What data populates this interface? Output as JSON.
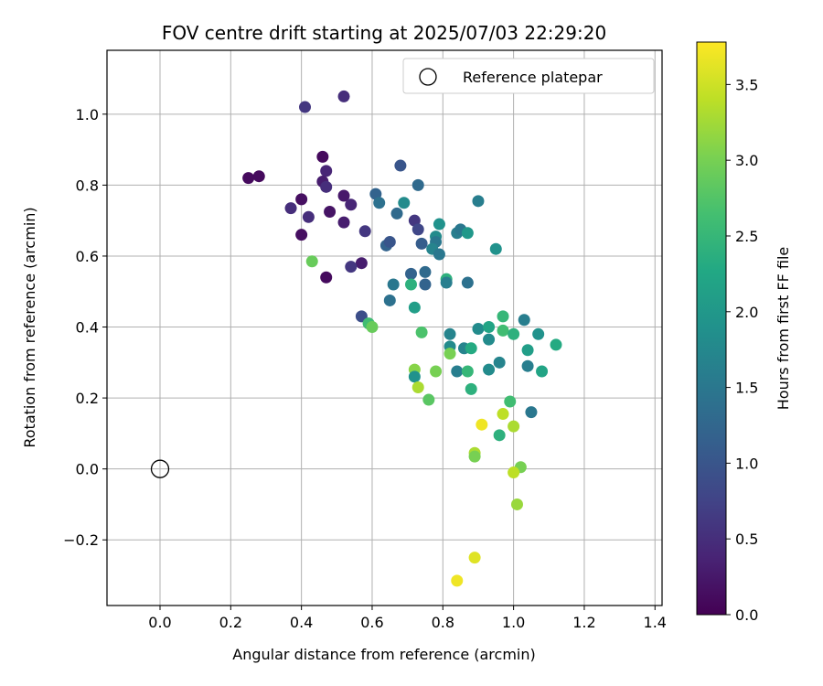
{
  "chart_data": {
    "type": "scatter",
    "title": "FOV centre drift starting at 2025/07/03 22:29:20",
    "xlabel": "Angular distance from reference (arcmin)",
    "ylabel": "Rotation from reference (arcmin)",
    "xlim": [
      -0.15,
      1.42
    ],
    "ylim": [
      -0.385,
      1.18
    ],
    "xticks": [
      0.0,
      0.2,
      0.4,
      0.6,
      0.8,
      1.0,
      1.2,
      1.4
    ],
    "xtick_labels": [
      "0.0",
      "0.2",
      "0.4",
      "0.6",
      "0.8",
      "1.0",
      "1.2",
      "1.4"
    ],
    "yticks": [
      -0.2,
      0.0,
      0.2,
      0.4,
      0.6,
      0.8,
      1.0
    ],
    "ytick_labels": [
      "−0.2",
      "0.0",
      "0.2",
      "0.4",
      "0.6",
      "0.8",
      "1.0"
    ],
    "grid": true,
    "legend": {
      "position": "top-right",
      "entries": [
        "Reference platepar"
      ]
    },
    "reference_point": {
      "x": 0.0,
      "y": 0.0,
      "label": "Reference platepar"
    },
    "colorbar": {
      "label": "Hours from first FF file",
      "colormap": "viridis",
      "range": [
        0.0,
        3.78
      ],
      "ticks": [
        0.0,
        0.5,
        1.0,
        1.5,
        2.0,
        2.5,
        3.0,
        3.5
      ],
      "tick_labels": [
        "0.0",
        "0.5",
        "1.0",
        "1.5",
        "2.0",
        "2.5",
        "3.0",
        "3.5"
      ]
    },
    "points": [
      {
        "x": 0.25,
        "y": 0.82,
        "c": 0.1
      },
      {
        "x": 0.28,
        "y": 0.825,
        "c": 0.1
      },
      {
        "x": 0.41,
        "y": 1.02,
        "c": 0.6
      },
      {
        "x": 0.52,
        "y": 1.05,
        "c": 0.5
      },
      {
        "x": 0.46,
        "y": 0.88,
        "c": 0.1
      },
      {
        "x": 0.47,
        "y": 0.84,
        "c": 0.4
      },
      {
        "x": 0.46,
        "y": 0.81,
        "c": 0.3
      },
      {
        "x": 0.47,
        "y": 0.795,
        "c": 0.5
      },
      {
        "x": 0.4,
        "y": 0.76,
        "c": 0.15
      },
      {
        "x": 0.37,
        "y": 0.735,
        "c": 0.5
      },
      {
        "x": 0.42,
        "y": 0.71,
        "c": 0.5
      },
      {
        "x": 0.48,
        "y": 0.725,
        "c": 0.2
      },
      {
        "x": 0.52,
        "y": 0.77,
        "c": 0.25
      },
      {
        "x": 0.54,
        "y": 0.745,
        "c": 0.4
      },
      {
        "x": 0.52,
        "y": 0.695,
        "c": 0.3
      },
      {
        "x": 0.4,
        "y": 0.66,
        "c": 0.15
      },
      {
        "x": 0.58,
        "y": 0.67,
        "c": 0.6
      },
      {
        "x": 0.57,
        "y": 0.58,
        "c": 0.3
      },
      {
        "x": 0.54,
        "y": 0.57,
        "c": 0.6
      },
      {
        "x": 0.47,
        "y": 0.54,
        "c": 0.1
      },
      {
        "x": 0.43,
        "y": 0.585,
        "c": 2.9
      },
      {
        "x": 0.57,
        "y": 0.43,
        "c": 0.9
      },
      {
        "x": 0.59,
        "y": 0.41,
        "c": 2.6
      },
      {
        "x": 0.6,
        "y": 0.4,
        "c": 2.9
      },
      {
        "x": 0.61,
        "y": 0.775,
        "c": 1.2
      },
      {
        "x": 0.62,
        "y": 0.75,
        "c": 1.4
      },
      {
        "x": 0.64,
        "y": 0.63,
        "c": 1.2
      },
      {
        "x": 0.65,
        "y": 0.64,
        "c": 1.0
      },
      {
        "x": 0.67,
        "y": 0.72,
        "c": 1.3
      },
      {
        "x": 0.68,
        "y": 0.855,
        "c": 1.0
      },
      {
        "x": 0.73,
        "y": 0.8,
        "c": 1.3
      },
      {
        "x": 0.69,
        "y": 0.75,
        "c": 1.8
      },
      {
        "x": 0.72,
        "y": 0.7,
        "c": 0.6
      },
      {
        "x": 0.73,
        "y": 0.675,
        "c": 0.8
      },
      {
        "x": 0.74,
        "y": 0.635,
        "c": 1.1
      },
      {
        "x": 0.66,
        "y": 0.52,
        "c": 1.5
      },
      {
        "x": 0.65,
        "y": 0.475,
        "c": 1.4
      },
      {
        "x": 0.71,
        "y": 0.55,
        "c": 1.2
      },
      {
        "x": 0.71,
        "y": 0.52,
        "c": 2.4
      },
      {
        "x": 0.75,
        "y": 0.555,
        "c": 1.3
      },
      {
        "x": 0.75,
        "y": 0.52,
        "c": 1.2
      },
      {
        "x": 0.72,
        "y": 0.455,
        "c": 2.1
      },
      {
        "x": 0.78,
        "y": 0.655,
        "c": 1.8
      },
      {
        "x": 0.78,
        "y": 0.64,
        "c": 1.5
      },
      {
        "x": 0.79,
        "y": 0.69,
        "c": 1.9
      },
      {
        "x": 0.77,
        "y": 0.62,
        "c": 1.7
      },
      {
        "x": 0.79,
        "y": 0.605,
        "c": 1.5
      },
      {
        "x": 0.81,
        "y": 0.535,
        "c": 2.4
      },
      {
        "x": 0.81,
        "y": 0.525,
        "c": 1.6
      },
      {
        "x": 0.87,
        "y": 0.525,
        "c": 1.4
      },
      {
        "x": 0.84,
        "y": 0.665,
        "c": 1.6
      },
      {
        "x": 0.85,
        "y": 0.675,
        "c": 1.5
      },
      {
        "x": 0.87,
        "y": 0.665,
        "c": 2.0
      },
      {
        "x": 0.9,
        "y": 0.755,
        "c": 1.6
      },
      {
        "x": 0.95,
        "y": 0.62,
        "c": 1.9
      },
      {
        "x": 0.82,
        "y": 0.38,
        "c": 1.7
      },
      {
        "x": 0.82,
        "y": 0.345,
        "c": 1.8
      },
      {
        "x": 0.86,
        "y": 0.34,
        "c": 1.7
      },
      {
        "x": 0.88,
        "y": 0.34,
        "c": 2.3
      },
      {
        "x": 0.82,
        "y": 0.325,
        "c": 3.0
      },
      {
        "x": 0.74,
        "y": 0.385,
        "c": 2.7
      },
      {
        "x": 0.72,
        "y": 0.28,
        "c": 3.1
      },
      {
        "x": 0.72,
        "y": 0.26,
        "c": 1.9
      },
      {
        "x": 0.78,
        "y": 0.275,
        "c": 3.0
      },
      {
        "x": 0.84,
        "y": 0.275,
        "c": 1.6
      },
      {
        "x": 0.87,
        "y": 0.275,
        "c": 2.5
      },
      {
        "x": 0.88,
        "y": 0.225,
        "c": 2.4
      },
      {
        "x": 0.73,
        "y": 0.23,
        "c": 3.3
      },
      {
        "x": 0.76,
        "y": 0.195,
        "c": 2.8
      },
      {
        "x": 0.9,
        "y": 0.395,
        "c": 1.8
      },
      {
        "x": 0.93,
        "y": 0.4,
        "c": 2.2
      },
      {
        "x": 0.93,
        "y": 0.365,
        "c": 1.8
      },
      {
        "x": 0.97,
        "y": 0.43,
        "c": 2.5
      },
      {
        "x": 0.97,
        "y": 0.39,
        "c": 2.6
      },
      {
        "x": 1.0,
        "y": 0.38,
        "c": 2.4
      },
      {
        "x": 1.03,
        "y": 0.42,
        "c": 1.6
      },
      {
        "x": 1.07,
        "y": 0.38,
        "c": 1.9
      },
      {
        "x": 1.12,
        "y": 0.35,
        "c": 2.3
      },
      {
        "x": 1.04,
        "y": 0.335,
        "c": 2.1
      },
      {
        "x": 0.96,
        "y": 0.3,
        "c": 1.7
      },
      {
        "x": 0.93,
        "y": 0.28,
        "c": 1.8
      },
      {
        "x": 1.04,
        "y": 0.29,
        "c": 1.6
      },
      {
        "x": 1.08,
        "y": 0.275,
        "c": 2.2
      },
      {
        "x": 1.05,
        "y": 0.16,
        "c": 1.5
      },
      {
        "x": 0.99,
        "y": 0.19,
        "c": 2.6
      },
      {
        "x": 0.97,
        "y": 0.155,
        "c": 3.4
      },
      {
        "x": 0.91,
        "y": 0.125,
        "c": 3.7
      },
      {
        "x": 1.0,
        "y": 0.12,
        "c": 3.3
      },
      {
        "x": 0.96,
        "y": 0.095,
        "c": 2.4
      },
      {
        "x": 0.89,
        "y": 0.045,
        "c": 3.3
      },
      {
        "x": 0.89,
        "y": 0.035,
        "c": 3.0
      },
      {
        "x": 1.02,
        "y": 0.005,
        "c": 3.0
      },
      {
        "x": 1.0,
        "y": -0.01,
        "c": 3.4
      },
      {
        "x": 1.01,
        "y": -0.1,
        "c": 3.2
      },
      {
        "x": 0.89,
        "y": -0.25,
        "c": 3.6
      },
      {
        "x": 0.84,
        "y": -0.315,
        "c": 3.7
      }
    ]
  }
}
